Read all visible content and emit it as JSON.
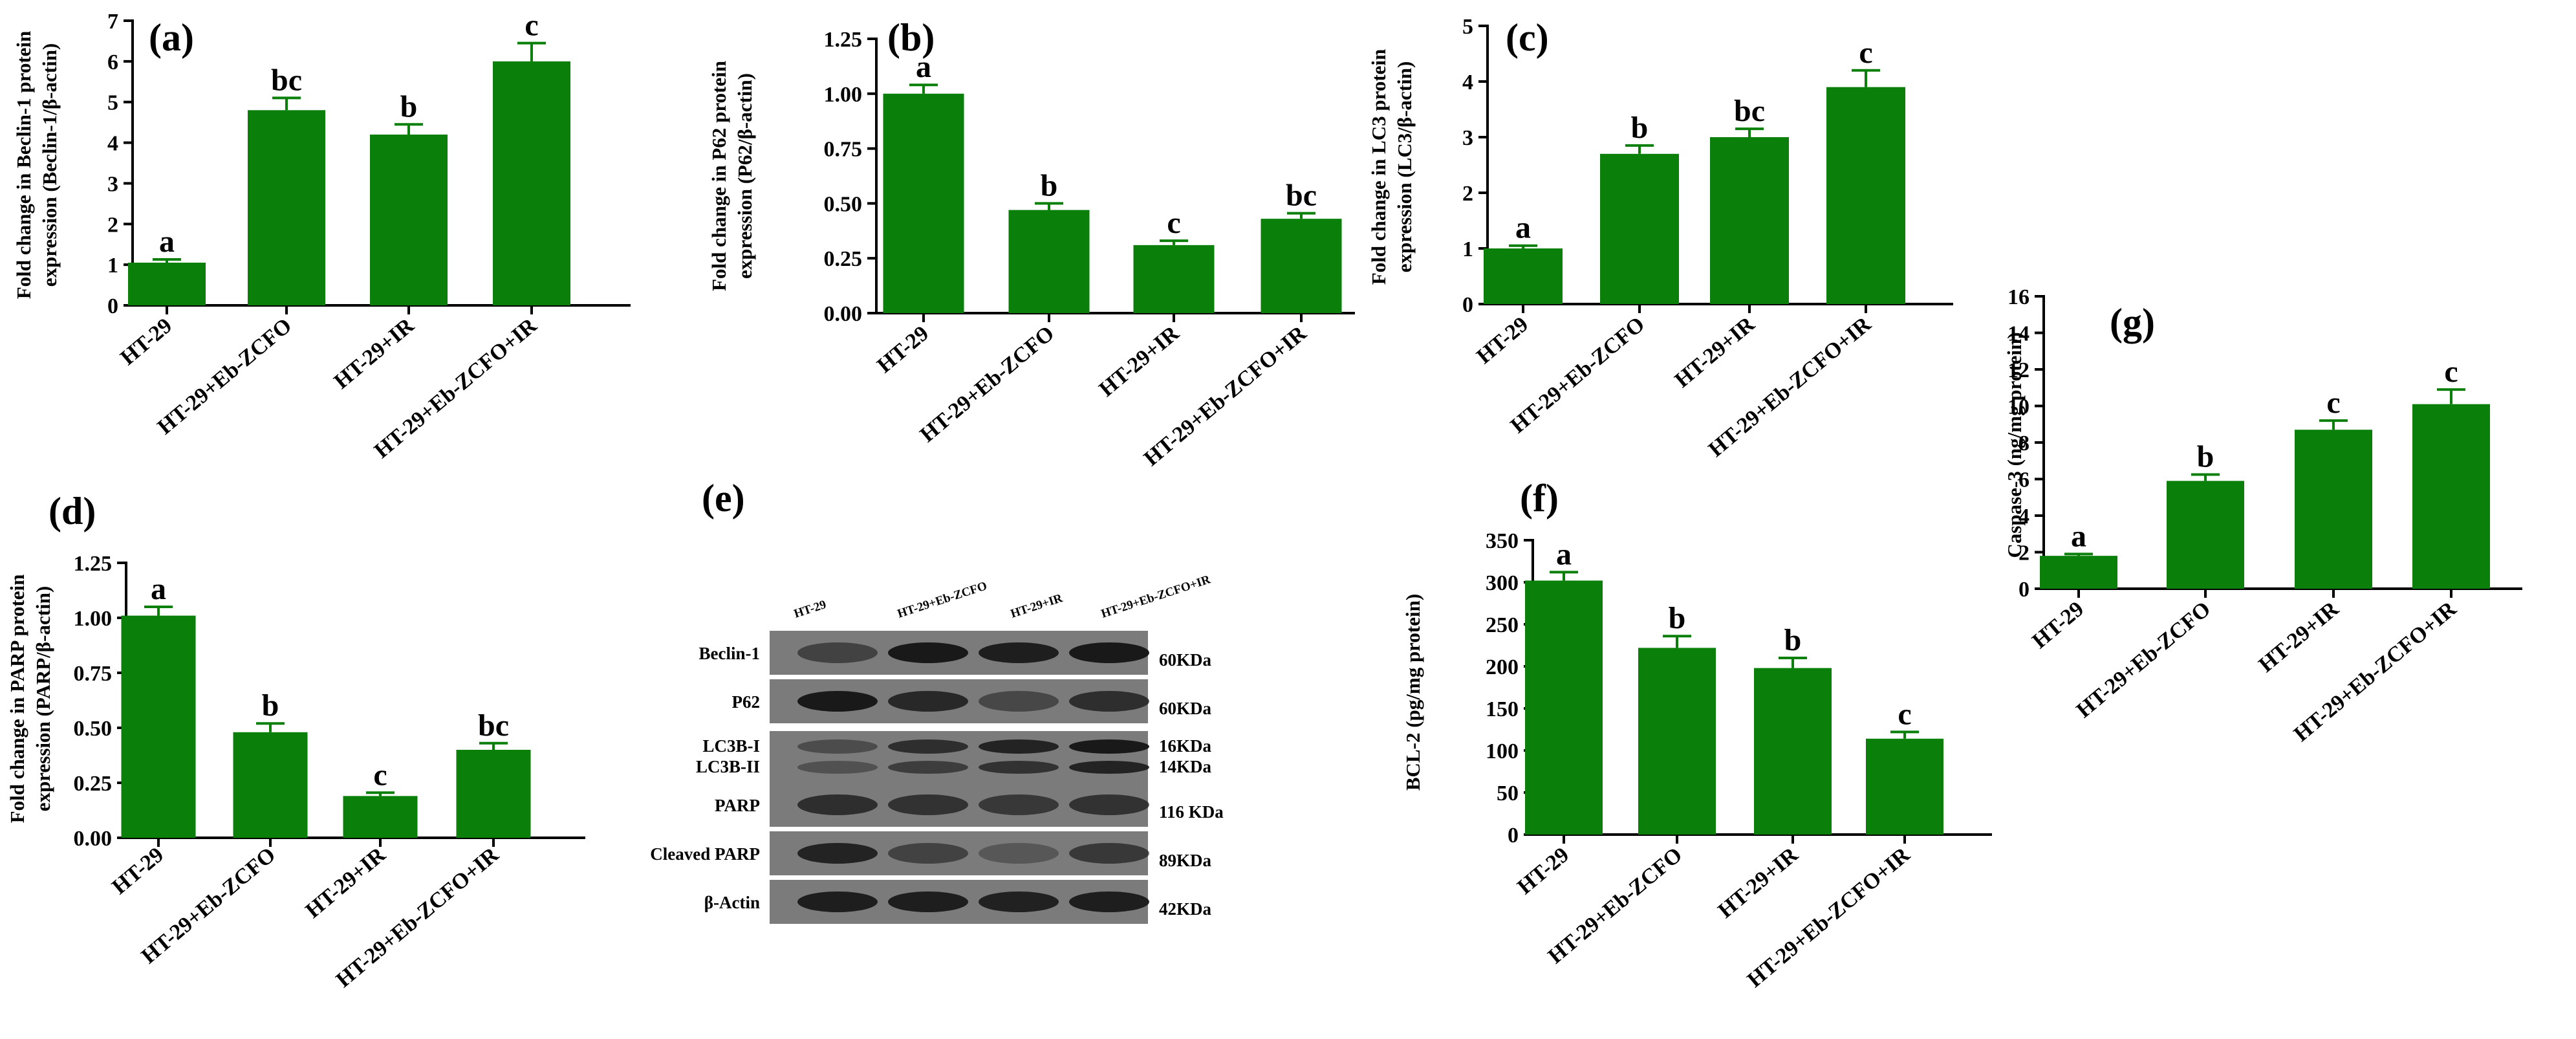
{
  "colors": {
    "bar": "#0a800a",
    "axis": "#000000",
    "blot_bg": "#7b7b7b",
    "band": "#141414"
  },
  "chart_data": [
    {
      "id": "a",
      "label": "(a)",
      "type": "bar",
      "ylabel_lines": [
        "Fold change in Beclin-1 protein",
        "expression (Beclin-1/β-actin)"
      ],
      "categories": [
        "HT-29",
        "HT-29+Eb-ZCFO",
        "HT-29+IR",
        "HT-29+Eb-ZCFO+IR"
      ],
      "values": [
        1.05,
        4.8,
        4.2,
        6.0
      ],
      "errors": [
        0.08,
        0.3,
        0.25,
        0.45
      ],
      "letters": [
        "a",
        "bc",
        "b",
        "c"
      ],
      "ylim": [
        0,
        7
      ],
      "yticks": [
        "0",
        "1",
        "2",
        "3",
        "4",
        "5",
        "6",
        "7"
      ]
    },
    {
      "id": "b",
      "label": "(b)",
      "type": "bar",
      "ylabel_lines": [
        "Fold change in P62 protein",
        "expression (P62/β-actin)"
      ],
      "categories": [
        "HT-29",
        "HT-29+Eb-ZCFO",
        "HT-29+IR",
        "HT-29+Eb-ZCFO+IR"
      ],
      "values": [
        1.0,
        0.47,
        0.31,
        0.43
      ],
      "errors": [
        0.04,
        0.03,
        0.02,
        0.025
      ],
      "letters": [
        "a",
        "b",
        "c",
        "bc"
      ],
      "ylim": [
        0,
        1.25
      ],
      "yticks": [
        "0.00",
        "0.25",
        "0.50",
        "0.75",
        "1.00",
        "1.25"
      ]
    },
    {
      "id": "c",
      "label": "(c)",
      "type": "bar",
      "ylabel_lines": [
        "Fold change in LC3 protein",
        "expression (LC3/β-actin)"
      ],
      "categories": [
        "HT-29",
        "HT-29+Eb-ZCFO",
        "HT-29+IR",
        "HT-29+Eb-ZCFO+IR"
      ],
      "values": [
        1.0,
        2.7,
        3.0,
        3.9
      ],
      "errors": [
        0.05,
        0.15,
        0.15,
        0.3
      ],
      "letters": [
        "a",
        "b",
        "bc",
        "c"
      ],
      "ylim": [
        0,
        5
      ],
      "yticks": [
        "0",
        "1",
        "2",
        "3",
        "4",
        "5"
      ]
    },
    {
      "id": "d",
      "label": "(d)",
      "type": "bar",
      "ylabel_lines": [
        "Fold change in PARP protein",
        "expression (PARP/β-actin)"
      ],
      "categories": [
        "HT-29",
        "HT-29+Eb-ZCFO",
        "HT-29+IR",
        "HT-29+Eb-ZCFO+IR"
      ],
      "values": [
        1.01,
        0.48,
        0.19,
        0.4
      ],
      "errors": [
        0.04,
        0.04,
        0.015,
        0.03
      ],
      "letters": [
        "a",
        "b",
        "c",
        "bc"
      ],
      "ylim": [
        0,
        1.25
      ],
      "yticks": [
        "0.00",
        "0.25",
        "0.50",
        "0.75",
        "1.00",
        "1.25"
      ]
    },
    {
      "id": "f",
      "label": "(f)",
      "type": "bar",
      "ylabel_lines": [
        "BCL-2 (pg/mg protein)"
      ],
      "categories": [
        "HT-29",
        "HT-29+Eb-ZCFO",
        "HT-29+IR",
        "HT-29+Eb-ZCFO+IR"
      ],
      "values": [
        302,
        222,
        198,
        114
      ],
      "errors": [
        10,
        14,
        12,
        8
      ],
      "letters": [
        "a",
        "b",
        "b",
        "c"
      ],
      "ylim": [
        0,
        350
      ],
      "yticks": [
        "0",
        "50",
        "100",
        "150",
        "200",
        "250",
        "300",
        "350"
      ]
    },
    {
      "id": "g",
      "label": "(g)",
      "type": "bar",
      "ylabel_lines": [
        "Caspase-3 (ng/mg protein)"
      ],
      "categories": [
        "HT-29",
        "HT-29+Eb-ZCFO",
        "HT-29+IR",
        "HT-29+Eb-ZCFO+IR"
      ],
      "values": [
        1.8,
        5.9,
        8.7,
        10.1
      ],
      "errors": [
        0.1,
        0.35,
        0.5,
        0.8
      ],
      "letters": [
        "a",
        "b",
        "c",
        "c"
      ],
      "ylim": [
        0,
        16
      ],
      "yticks": [
        "0",
        "2",
        "4",
        "6",
        "8",
        "10",
        "12",
        "14",
        "16"
      ]
    }
  ],
  "western_blot": {
    "label": "(e)",
    "lanes": [
      "HT-29",
      "HT-29+Eb-ZCFO",
      "HT-29+IR",
      "HT-29+Eb-ZCFO+IR"
    ],
    "rows": [
      {
        "name": "Beclin-1",
        "size": "60KDa",
        "intensity": [
          0.55,
          0.95,
          0.9,
          0.95
        ]
      },
      {
        "name": "P62",
        "size": "60KDa",
        "intensity": [
          0.95,
          0.8,
          0.5,
          0.75
        ]
      },
      {
        "name": "LC3B-I",
        "name2": "LC3B-II",
        "size": "16KDa",
        "size2": "14KDa",
        "intensity": [
          0.45,
          0.75,
          0.85,
          0.95
        ],
        "intensity2": [
          0.4,
          0.6,
          0.7,
          0.85
        ]
      },
      {
        "name": "PARP",
        "size": "116 KDa",
        "intensity": [
          0.75,
          0.7,
          0.65,
          0.7
        ]
      },
      {
        "name": "Cleaved PARP",
        "size": "89KDa",
        "intensity": [
          0.85,
          0.55,
          0.35,
          0.65
        ]
      },
      {
        "name": "β-Actin",
        "size": "42KDa",
        "intensity": [
          0.9,
          0.9,
          0.88,
          0.9
        ]
      }
    ]
  }
}
